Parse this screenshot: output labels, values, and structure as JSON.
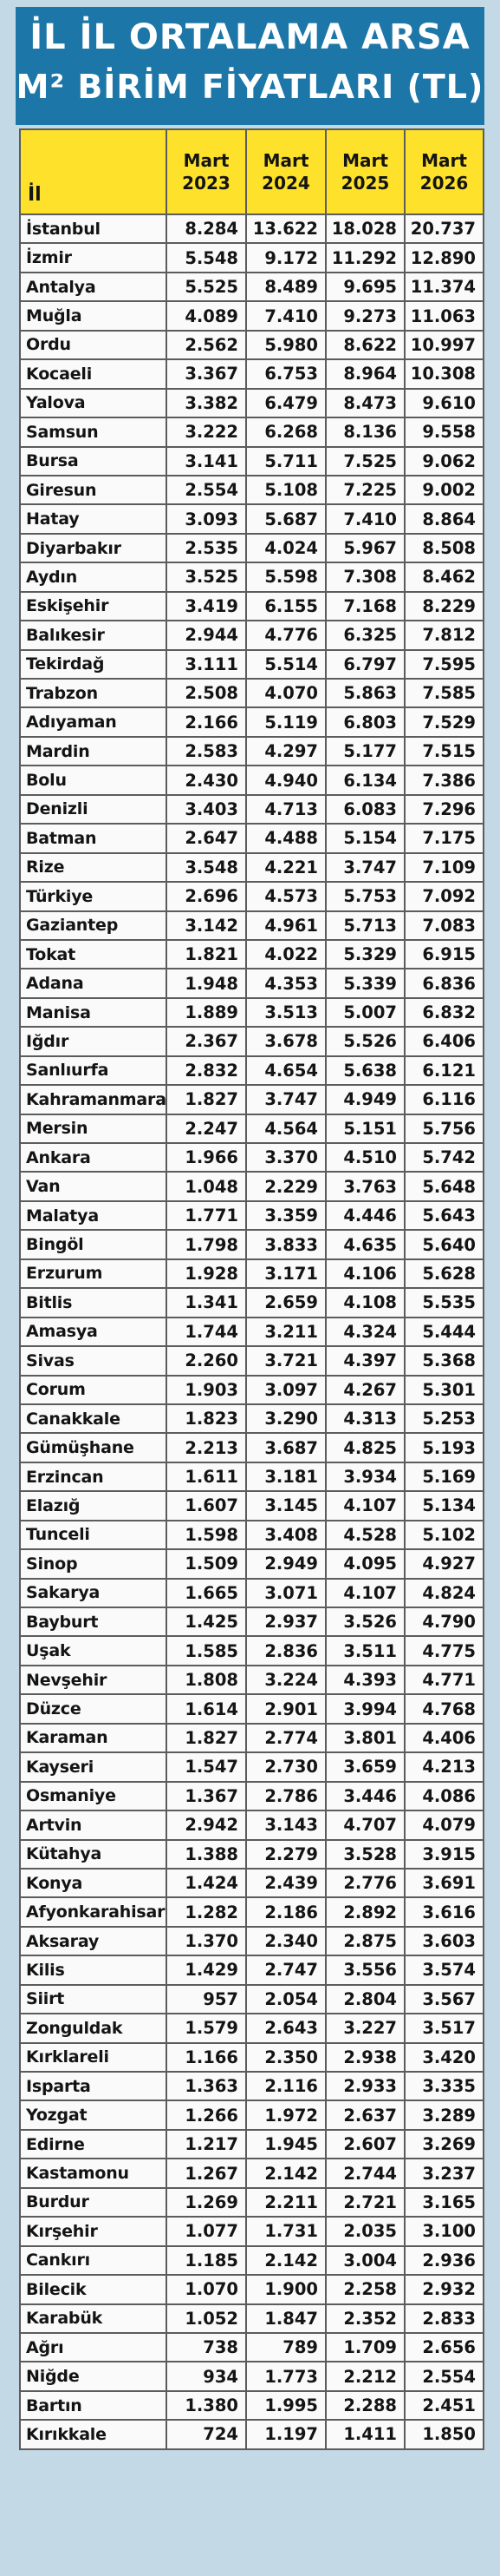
{
  "title": {
    "line1": "İL İL ORTALAMA ARSA",
    "line2": "M² BİRİM FİYATLARI (TL)"
  },
  "header": {
    "il": "İl",
    "years": [
      "Mart 2023",
      "Mart 2024",
      "Mart 2025",
      "Mart 2026"
    ]
  },
  "rows": [
    [
      "İstanbul",
      "8.284",
      "13.622",
      "18.028",
      "20.737"
    ],
    [
      "İzmir",
      "5.548",
      "9.172",
      "11.292",
      "12.890"
    ],
    [
      "Antalya",
      "5.525",
      "8.489",
      "9.695",
      "11.374"
    ],
    [
      "Muğla",
      "4.089",
      "7.410",
      "9.273",
      "11.063"
    ],
    [
      "Ordu",
      "2.562",
      "5.980",
      "8.622",
      "10.997"
    ],
    [
      "Kocaeli",
      "3.367",
      "6.753",
      "8.964",
      "10.308"
    ],
    [
      "Yalova",
      "3.382",
      "6.479",
      "8.473",
      "9.610"
    ],
    [
      "Samsun",
      "3.222",
      "6.268",
      "8.136",
      "9.558"
    ],
    [
      "Bursa",
      "3.141",
      "5.711",
      "7.525",
      "9.062"
    ],
    [
      "Giresun",
      "2.554",
      "5.108",
      "7.225",
      "9.002"
    ],
    [
      "Hatay",
      "3.093",
      "5.687",
      "7.410",
      "8.864"
    ],
    [
      "Diyarbakır",
      "2.535",
      "4.024",
      "5.967",
      "8.508"
    ],
    [
      "Aydın",
      "3.525",
      "5.598",
      "7.308",
      "8.462"
    ],
    [
      "Eskişehir",
      "3.419",
      "6.155",
      "7.168",
      "8.229"
    ],
    [
      "Balıkesir",
      "2.944",
      "4.776",
      "6.325",
      "7.812"
    ],
    [
      "Tekirdağ",
      "3.111",
      "5.514",
      "6.797",
      "7.595"
    ],
    [
      "Trabzon",
      "2.508",
      "4.070",
      "5.863",
      "7.585"
    ],
    [
      "Adıyaman",
      "2.166",
      "5.119",
      "6.803",
      "7.529"
    ],
    [
      "Mardin",
      "2.583",
      "4.297",
      "5.177",
      "7.515"
    ],
    [
      "Bolu",
      "2.430",
      "4.940",
      "6.134",
      "7.386"
    ],
    [
      "Denizli",
      "3.403",
      "4.713",
      "6.083",
      "7.296"
    ],
    [
      "Batman",
      "2.647",
      "4.488",
      "5.154",
      "7.175"
    ],
    [
      "Rize",
      "3.548",
      "4.221",
      "3.747",
      "7.109"
    ],
    [
      "Türkiye",
      "2.696",
      "4.573",
      "5.753",
      "7.092"
    ],
    [
      "Gaziantep",
      "3.142",
      "4.961",
      "5.713",
      "7.083"
    ],
    [
      "Tokat",
      "1.821",
      "4.022",
      "5.329",
      "6.915"
    ],
    [
      "Adana",
      "1.948",
      "4.353",
      "5.339",
      "6.836"
    ],
    [
      "Manisa",
      "1.889",
      "3.513",
      "5.007",
      "6.832"
    ],
    [
      "Iğdır",
      "2.367",
      "3.678",
      "5.526",
      "6.406"
    ],
    [
      "Sanlıurfa",
      "2.832",
      "4.654",
      "5.638",
      "6.121"
    ],
    [
      "Kahramanmaraş",
      "1.827",
      "3.747",
      "4.949",
      "6.116"
    ],
    [
      "Mersin",
      "2.247",
      "4.564",
      "5.151",
      "5.756"
    ],
    [
      "Ankara",
      "1.966",
      "3.370",
      "4.510",
      "5.742"
    ],
    [
      "Van",
      "1.048",
      "2.229",
      "3.763",
      "5.648"
    ],
    [
      "Malatya",
      "1.771",
      "3.359",
      "4.446",
      "5.643"
    ],
    [
      "Bingöl",
      "1.798",
      "3.833",
      "4.635",
      "5.640"
    ],
    [
      "Erzurum",
      "1.928",
      "3.171",
      "4.106",
      "5.628"
    ],
    [
      "Bitlis",
      "1.341",
      "2.659",
      "4.108",
      "5.535"
    ],
    [
      "Amasya",
      "1.744",
      "3.211",
      "4.324",
      "5.444"
    ],
    [
      "Sivas",
      "2.260",
      "3.721",
      "4.397",
      "5.368"
    ],
    [
      "Corum",
      "1.903",
      "3.097",
      "4.267",
      "5.301"
    ],
    [
      "Canakkale",
      "1.823",
      "3.290",
      "4.313",
      "5.253"
    ],
    [
      "Gümüşhane",
      "2.213",
      "3.687",
      "4.825",
      "5.193"
    ],
    [
      "Erzincan",
      "1.611",
      "3.181",
      "3.934",
      "5.169"
    ],
    [
      "Elazığ",
      "1.607",
      "3.145",
      "4.107",
      "5.134"
    ],
    [
      "Tunceli",
      "1.598",
      "3.408",
      "4.528",
      "5.102"
    ],
    [
      "Sinop",
      "1.509",
      "2.949",
      "4.095",
      "4.927"
    ],
    [
      "Sakarya",
      "1.665",
      "3.071",
      "4.107",
      "4.824"
    ],
    [
      "Bayburt",
      "1.425",
      "2.937",
      "3.526",
      "4.790"
    ],
    [
      "Uşak",
      "1.585",
      "2.836",
      "3.511",
      "4.775"
    ],
    [
      "Nevşehir",
      "1.808",
      "3.224",
      "4.393",
      "4.771"
    ],
    [
      "Düzce",
      "1.614",
      "2.901",
      "3.994",
      "4.768"
    ],
    [
      "Karaman",
      "1.827",
      "2.774",
      "3.801",
      "4.406"
    ],
    [
      "Kayseri",
      "1.547",
      "2.730",
      "3.659",
      "4.213"
    ],
    [
      "Osmaniye",
      "1.367",
      "2.786",
      "3.446",
      "4.086"
    ],
    [
      "Artvin",
      "2.942",
      "3.143",
      "4.707",
      "4.079"
    ],
    [
      "Kütahya",
      "1.388",
      "2.279",
      "3.528",
      "3.915"
    ],
    [
      "Konya",
      "1.424",
      "2.439",
      "2.776",
      "3.691"
    ],
    [
      "Afyonkarahisar",
      "1.282",
      "2.186",
      "2.892",
      "3.616"
    ],
    [
      "Aksaray",
      "1.370",
      "2.340",
      "2.875",
      "3.603"
    ],
    [
      "Kilis",
      "1.429",
      "2.747",
      "3.556",
      "3.574"
    ],
    [
      "Siirt",
      "957",
      "2.054",
      "2.804",
      "3.567"
    ],
    [
      "Zonguldak",
      "1.579",
      "2.643",
      "3.227",
      "3.517"
    ],
    [
      "Kırklareli",
      "1.166",
      "2.350",
      "2.938",
      "3.420"
    ],
    [
      "Isparta",
      "1.363",
      "2.116",
      "2.933",
      "3.335"
    ],
    [
      "Yozgat",
      "1.266",
      "1.972",
      "2.637",
      "3.289"
    ],
    [
      "Edirne",
      "1.217",
      "1.945",
      "2.607",
      "3.269"
    ],
    [
      "Kastamonu",
      "1.267",
      "2.142",
      "2.744",
      "3.237"
    ],
    [
      "Burdur",
      "1.269",
      "2.211",
      "2.721",
      "3.165"
    ],
    [
      "Kırşehir",
      "1.077",
      "1.731",
      "2.035",
      "3.100"
    ],
    [
      "Cankırı",
      "1.185",
      "2.142",
      "3.004",
      "2.936"
    ],
    [
      "Bilecik",
      "1.070",
      "1.900",
      "2.258",
      "2.932"
    ],
    [
      "Karabük",
      "1.052",
      "1.847",
      "2.352",
      "2.833"
    ],
    [
      "Ağrı",
      "738",
      "789",
      "1.709",
      "2.656"
    ],
    [
      "Niğde",
      "934",
      "1.773",
      "2.212",
      "2.554"
    ],
    [
      "Bartın",
      "1.380",
      "1.995",
      "2.288",
      "2.451"
    ],
    [
      "Kırıkkale",
      "724",
      "1.197",
      "1.411",
      "1.850"
    ]
  ]
}
